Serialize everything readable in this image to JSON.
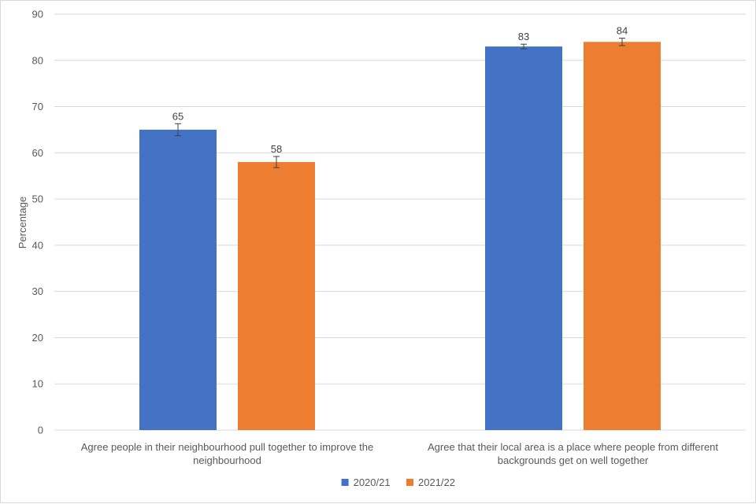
{
  "chart_data": {
    "type": "bar",
    "title": "",
    "xlabel": "",
    "ylabel": "Percentage",
    "ylim": [
      0,
      90
    ],
    "yticks": [
      0,
      10,
      20,
      30,
      40,
      50,
      60,
      70,
      80,
      90
    ],
    "grid": true,
    "legend_position": "bottom",
    "categories": [
      [
        "Agree people in their neighbourhood pull together to improve the",
        "neighbourhood"
      ],
      [
        "Agree that their local area is a place where people from different",
        "backgrounds get on well together"
      ]
    ],
    "series": [
      {
        "name": "2020/21",
        "color": "#4472c4",
        "values": [
          65,
          83
        ],
        "labels": [
          "65",
          "83"
        ],
        "error": [
          1.3,
          0.5
        ]
      },
      {
        "name": "2021/22",
        "color": "#ed7d31",
        "values": [
          58,
          84
        ],
        "labels": [
          "58",
          "84"
        ],
        "error": [
          1.2,
          0.8
        ]
      }
    ],
    "colors": {
      "grid": "#d9d9d9",
      "text": "#595959",
      "error_bar": "#404040"
    }
  }
}
